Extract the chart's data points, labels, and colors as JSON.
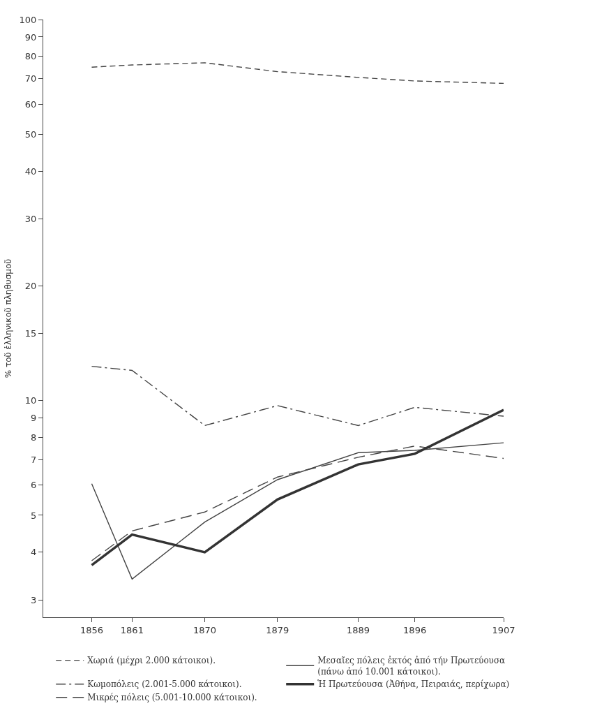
{
  "chart_data": {
    "type": "line",
    "ylabel": "% τοῦ ἑλληνικοῦ πληθυσμοῦ",
    "log": "y",
    "grid": false,
    "legend": "bottom",
    "marker": "none",
    "x": [
      1856,
      1861,
      1870,
      1879,
      1889,
      1896,
      1907
    ],
    "xlim": [
      1850,
      1907
    ],
    "xticks": [
      1856,
      1861,
      1870,
      1879,
      1889,
      1896,
      1907
    ],
    "ylim": [
      2.7,
      100
    ],
    "yticks": [
      3,
      4,
      5,
      6,
      7,
      8,
      9,
      10,
      15,
      20,
      30,
      40,
      50,
      60,
      70,
      80,
      90,
      100
    ],
    "series": [
      {
        "name": "Χωριά (μέχρι 2.000 κάτοικοι).",
        "color": "#444444",
        "line_style": "dashed",
        "values": [
          75,
          76,
          77,
          73,
          70.5,
          69,
          68
        ]
      },
      {
        "name": "Κωμοπόλεις (2.001-5.000 κάτοικοι).",
        "color": "#444444",
        "line_style": "dashdot",
        "values": [
          12.3,
          12.0,
          8.6,
          9.7,
          8.6,
          9.6,
          9.1
        ]
      },
      {
        "name": "Μικρές πόλεις (5.001-10.000 κάτοικοι).",
        "color": "#444444",
        "line_style": "longdash",
        "values": [
          3.8,
          4.55,
          5.1,
          6.3,
          7.1,
          7.6,
          7.05
        ]
      },
      {
        "name": "Μεσαῖες πόλεις ἐκτός ἀπό τήν Πρωτεύουσα\n(πάνω ἀπό 10.001 κάτοικοι).",
        "color": "#444444",
        "line_style": "solid",
        "values": [
          6.05,
          3.4,
          4.8,
          6.2,
          7.3,
          7.4,
          7.75
        ]
      },
      {
        "name": "Ἡ Πρωτεύουσα (Ἀθήνα, Πειραιάς, περίχωρα)",
        "color": "#333333",
        "line_style": "solid",
        "values": [
          3.7,
          4.45,
          4.0,
          5.5,
          6.8,
          7.25,
          9.45
        ]
      }
    ]
  }
}
